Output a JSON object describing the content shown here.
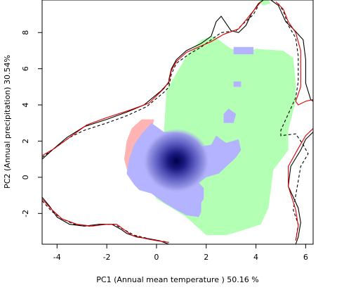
{
  "chart_data": {
    "type": "heatmap",
    "xlabel": "PC1 (Annual mean temperature ) 50.16 %",
    "ylabel": "PC2 (Annual precipitation) 30.54%",
    "xlim": [
      -4.6,
      6.3
    ],
    "ylim": [
      -3.7,
      9.8
    ],
    "xticks": [
      -4,
      -2,
      0,
      2,
      4,
      6
    ],
    "yticks": [
      -2,
      0,
      2,
      4,
      6,
      8
    ],
    "xtick_labels": [
      "-4",
      "-2",
      "0",
      "2",
      "4",
      "6"
    ],
    "ytick_labels": [
      "-2",
      "0",
      "2",
      "4",
      "6",
      "8"
    ],
    "grid": false,
    "colors": {
      "green_region": "#b3ffb3",
      "blue_region": "#b3b3ff",
      "red_region": "#ffb3b3",
      "density_core": "#000060",
      "envelope_black": "#000000",
      "envelope_red": "#dd0000"
    },
    "regions": [
      {
        "color": "green_region",
        "polygon": [
          [
            0.0,
            -1.2
          ],
          [
            0.5,
            -1.6
          ],
          [
            1.2,
            -2.2
          ],
          [
            2.0,
            -3.2
          ],
          [
            2.8,
            -3.2
          ],
          [
            3.3,
            -3.0
          ],
          [
            4.2,
            -2.6
          ],
          [
            4.5,
            -1.7
          ],
          [
            4.7,
            0.4
          ],
          [
            5.3,
            1.5
          ],
          [
            5.3,
            2.6
          ],
          [
            5.6,
            4.2
          ],
          [
            5.6,
            5.2
          ],
          [
            5.5,
            6.6
          ],
          [
            5.1,
            7.0
          ],
          [
            4.0,
            7.1
          ],
          [
            3.7,
            7.0
          ],
          [
            3.0,
            7.1
          ],
          [
            2.7,
            7.4
          ],
          [
            2.3,
            7.8
          ],
          [
            1.8,
            7.6
          ],
          [
            1.2,
            6.7
          ],
          [
            0.4,
            4.8
          ],
          [
            0.3,
            2.5
          ],
          [
            -0.2,
            2.5
          ],
          [
            -0.3,
            1.0
          ],
          [
            -0.3,
            -0.5
          ]
        ]
      },
      {
        "color": "green_region",
        "polygon": [
          [
            4.1,
            9.7
          ],
          [
            4.3,
            9.5
          ],
          [
            4.6,
            9.6
          ],
          [
            4.5,
            9.8
          ],
          [
            4.2,
            9.8
          ]
        ]
      },
      {
        "color": "red_region",
        "polygon": [
          [
            -0.9,
            -0.4
          ],
          [
            -0.7,
            -0.5
          ],
          [
            -0.6,
            0.0
          ],
          [
            -0.3,
            1.0
          ],
          [
            -0.2,
            2.5
          ],
          [
            -0.1,
            3.2
          ],
          [
            -0.6,
            3.2
          ],
          [
            -1.0,
            2.7
          ],
          [
            -1.2,
            2.0
          ],
          [
            -1.3,
            1.0
          ],
          [
            -1.1,
            0.0
          ]
        ]
      },
      {
        "color": "blue_region",
        "polygon": [
          [
            -0.9,
            -0.4
          ],
          [
            -0.7,
            -0.7
          ],
          [
            -0.2,
            -0.9
          ],
          [
            0.3,
            -1.4
          ],
          [
            0.8,
            -1.8
          ],
          [
            1.2,
            -2.1
          ],
          [
            1.7,
            -2.2
          ],
          [
            1.8,
            -1.9
          ],
          [
            1.8,
            -1.6
          ],
          [
            1.8,
            -1.4
          ],
          [
            1.9,
            -1.2
          ],
          [
            1.9,
            -0.6
          ],
          [
            1.7,
            -0.3
          ],
          [
            2.0,
            0.0
          ],
          [
            2.5,
            0.2
          ],
          [
            3.2,
            1.1
          ],
          [
            3.4,
            1.5
          ],
          [
            3.3,
            2.1
          ],
          [
            2.8,
            1.9
          ],
          [
            2.4,
            2.3
          ],
          [
            2.2,
            1.8
          ],
          [
            1.8,
            1.7
          ],
          [
            1.4,
            2.0
          ],
          [
            1.2,
            1.8
          ],
          [
            1.1,
            2.4
          ],
          [
            0.7,
            2.5
          ],
          [
            0.3,
            2.5
          ],
          [
            -0.2,
            3.0
          ],
          [
            -0.6,
            2.4
          ],
          [
            -0.9,
            1.8
          ],
          [
            -1.1,
            1.0
          ],
          [
            -1.2,
            0.2
          ]
        ]
      },
      {
        "color": "blue_region",
        "polygon": [
          [
            3.1,
            6.8
          ],
          [
            3.9,
            6.8
          ],
          [
            3.9,
            7.2
          ],
          [
            3.1,
            7.2
          ]
        ]
      },
      {
        "color": "blue_region",
        "polygon": [
          [
            3.1,
            5.0
          ],
          [
            3.4,
            5.0
          ],
          [
            3.4,
            5.3
          ],
          [
            3.1,
            5.3
          ]
        ]
      },
      {
        "color": "blue_region",
        "polygon": [
          [
            2.7,
            3.0
          ],
          [
            3.1,
            3.0
          ],
          [
            3.2,
            3.5
          ],
          [
            2.9,
            3.8
          ],
          [
            2.7,
            3.5
          ]
        ]
      }
    ],
    "density_peak": {
      "x": 0.8,
      "y": 0.9
    },
    "envelopes": [
      {
        "color": "envelope_black",
        "style": "solid",
        "points": [
          [
            -4.6,
            1.0
          ],
          [
            -4.2,
            1.5
          ],
          [
            -3.6,
            2.2
          ],
          [
            -2.9,
            2.8
          ],
          [
            -2.0,
            3.2
          ],
          [
            -1.2,
            3.6
          ],
          [
            -0.5,
            4.0
          ],
          [
            0.2,
            4.8
          ],
          [
            0.4,
            5.1
          ],
          [
            0.5,
            5.2
          ],
          [
            0.5,
            5.4
          ],
          [
            0.6,
            6.0
          ],
          [
            0.8,
            6.5
          ],
          [
            1.2,
            7.0
          ],
          [
            1.8,
            7.4
          ],
          [
            2.2,
            7.8
          ],
          [
            2.4,
            8.6
          ],
          [
            2.6,
            8.9
          ],
          [
            2.8,
            8.5
          ],
          [
            3.0,
            8.1
          ],
          [
            3.3,
            8.0
          ],
          [
            3.6,
            8.4
          ],
          [
            3.8,
            9.0
          ],
          [
            4.1,
            9.6
          ],
          [
            4.3,
            9.8
          ]
        ]
      },
      {
        "color": "envelope_black",
        "style": "solid",
        "points": [
          [
            4.6,
            9.8
          ],
          [
            4.9,
            9.5
          ],
          [
            5.2,
            8.6
          ],
          [
            5.5,
            8.2
          ],
          [
            5.9,
            7.6
          ],
          [
            6.0,
            6.5
          ],
          [
            6.0,
            5.2
          ],
          [
            6.2,
            4.3
          ],
          [
            6.3,
            4.2
          ]
        ]
      },
      {
        "color": "envelope_black",
        "style": "solid",
        "points": [
          [
            6.3,
            2.5
          ],
          [
            6.0,
            2.1
          ],
          [
            5.8,
            1.5
          ],
          [
            5.4,
            0.6
          ],
          [
            5.3,
            -0.5
          ],
          [
            5.7,
            -1.7
          ],
          [
            5.8,
            -2.5
          ],
          [
            5.7,
            -3.3
          ],
          [
            5.6,
            -3.7
          ]
        ]
      },
      {
        "color": "envelope_black",
        "style": "solid",
        "points": [
          [
            -4.6,
            -1.1
          ],
          [
            -4.3,
            -1.6
          ],
          [
            -4.0,
            -2.2
          ],
          [
            -3.5,
            -2.6
          ],
          [
            -2.9,
            -2.7
          ],
          [
            -2.3,
            -2.6
          ],
          [
            -1.8,
            -2.6
          ],
          [
            -1.4,
            -2.9
          ],
          [
            -1.2,
            -3.1
          ],
          [
            -0.8,
            -3.3
          ],
          [
            -0.3,
            -3.4
          ],
          [
            0.1,
            -3.5
          ],
          [
            0.5,
            -3.7
          ]
        ]
      },
      {
        "color": "envelope_black",
        "style": "dashed",
        "points": [
          [
            -4.6,
            1.1
          ],
          [
            -4.1,
            1.6
          ],
          [
            -3.5,
            2.2
          ],
          [
            -2.9,
            2.6
          ],
          [
            -2.0,
            3.0
          ],
          [
            -1.2,
            3.4
          ],
          [
            -0.4,
            3.9
          ],
          [
            0.3,
            4.7
          ],
          [
            0.5,
            5.0
          ],
          [
            0.6,
            5.7
          ],
          [
            0.8,
            6.3
          ],
          [
            1.3,
            6.8
          ],
          [
            1.8,
            7.2
          ],
          [
            2.2,
            7.6
          ],
          [
            2.6,
            8.0
          ],
          [
            3.2,
            8.1
          ],
          [
            3.5,
            8.5
          ],
          [
            3.9,
            9.0
          ],
          [
            4.1,
            9.5
          ]
        ]
      },
      {
        "color": "envelope_black",
        "style": "dashed",
        "points": [
          [
            4.9,
            9.6
          ],
          [
            5.1,
            9.2
          ],
          [
            5.3,
            8.4
          ],
          [
            5.6,
            7.7
          ],
          [
            5.7,
            6.7
          ],
          [
            5.7,
            5.3
          ],
          [
            5.6,
            4.4
          ],
          [
            5.3,
            3.5
          ],
          [
            5.0,
            2.6
          ],
          [
            5.0,
            2.3
          ],
          [
            5.6,
            2.4
          ],
          [
            5.9,
            1.8
          ],
          [
            6.1,
            1.3
          ],
          [
            5.8,
            0.6
          ],
          [
            5.7,
            -0.2
          ],
          [
            5.6,
            -1.0
          ],
          [
            5.5,
            -1.8
          ],
          [
            5.7,
            -2.6
          ],
          [
            5.6,
            -3.5
          ]
        ]
      },
      {
        "color": "envelope_black",
        "style": "dashed",
        "points": [
          [
            -4.6,
            -1.3
          ],
          [
            -4.2,
            -1.9
          ],
          [
            -3.8,
            -2.3
          ],
          [
            -3.3,
            -2.6
          ],
          [
            -2.7,
            -2.7
          ],
          [
            -2.1,
            -2.6
          ],
          [
            -1.7,
            -2.6
          ],
          [
            -1.3,
            -2.9
          ],
          [
            -0.9,
            -3.2
          ],
          [
            -0.3,
            -3.4
          ],
          [
            0.1,
            -3.5
          ],
          [
            0.5,
            -3.6
          ]
        ]
      },
      {
        "color": "envelope_red",
        "style": "solid",
        "points": [
          [
            -4.6,
            1.2
          ],
          [
            -4.1,
            1.6
          ],
          [
            -3.4,
            2.3
          ],
          [
            -2.8,
            2.9
          ],
          [
            -2.0,
            3.3
          ],
          [
            -1.1,
            3.7
          ],
          [
            -0.3,
            4.1
          ],
          [
            0.3,
            4.9
          ],
          [
            0.5,
            5.3
          ],
          [
            0.6,
            5.9
          ],
          [
            0.8,
            6.4
          ],
          [
            1.2,
            6.9
          ],
          [
            1.7,
            7.2
          ],
          [
            2.2,
            7.5
          ],
          [
            2.7,
            7.9
          ],
          [
            3.3,
            8.2
          ],
          [
            3.6,
            8.7
          ],
          [
            3.9,
            9.2
          ],
          [
            4.2,
            9.7
          ]
        ]
      },
      {
        "color": "envelope_red",
        "style": "solid",
        "points": [
          [
            4.8,
            9.7
          ],
          [
            5.1,
            9.3
          ],
          [
            5.3,
            8.6
          ],
          [
            5.6,
            8.0
          ],
          [
            5.8,
            7.0
          ],
          [
            5.8,
            5.7
          ],
          [
            5.8,
            5.0
          ],
          [
            5.6,
            4.2
          ],
          [
            5.7,
            4.0
          ],
          [
            6.0,
            4.2
          ],
          [
            6.3,
            4.3
          ]
        ]
      },
      {
        "color": "envelope_red",
        "style": "solid",
        "points": [
          [
            6.3,
            2.7
          ],
          [
            6.0,
            2.3
          ],
          [
            5.7,
            1.6
          ],
          [
            5.3,
            0.6
          ],
          [
            5.3,
            -0.5
          ],
          [
            5.6,
            -1.8
          ],
          [
            5.7,
            -2.7
          ],
          [
            5.6,
            -3.5
          ]
        ]
      },
      {
        "color": "envelope_red",
        "style": "solid",
        "points": [
          [
            -4.6,
            -1.2
          ],
          [
            -4.2,
            -1.8
          ],
          [
            -3.8,
            -2.3
          ],
          [
            -3.2,
            -2.6
          ],
          [
            -2.6,
            -2.7
          ],
          [
            -2.0,
            -2.6
          ],
          [
            -1.6,
            -2.6
          ],
          [
            -1.3,
            -2.9
          ],
          [
            -1.0,
            -3.2
          ],
          [
            -0.4,
            -3.4
          ],
          [
            0.0,
            -3.5
          ],
          [
            0.5,
            -3.6
          ]
        ]
      }
    ]
  }
}
